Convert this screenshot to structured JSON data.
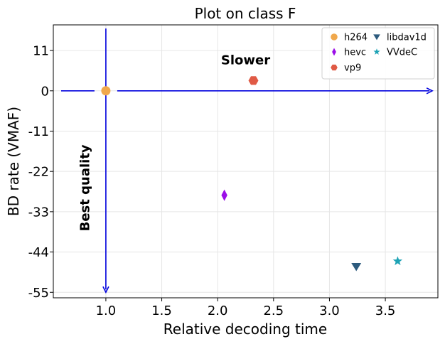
{
  "chart_data": {
    "type": "scatter",
    "title": "Plot on class F",
    "xlabel": "Relative decoding time",
    "ylabel": "BD rate (VMAF)",
    "xlim": [
      0.53,
      3.97
    ],
    "ylim": [
      -56.5,
      18
    ],
    "xticks": [
      1.0,
      1.5,
      2.0,
      2.5,
      3.0,
      3.5
    ],
    "xtick_labels": [
      "1.0",
      "1.5",
      "2.0",
      "2.5",
      "3.0",
      "3.5"
    ],
    "yticks": [
      11,
      0,
      -11,
      -22,
      -33,
      -44,
      -55
    ],
    "ytick_labels": [
      "11",
      "0",
      "-11",
      "-22",
      "-33",
      "-44",
      "-55"
    ],
    "grid": true,
    "legend_position": "top-right",
    "legend_columns": 2,
    "series": [
      {
        "name": "h264",
        "color": "#f0a84c",
        "marker": "circle",
        "points": [
          [
            1.0,
            0.0
          ]
        ]
      },
      {
        "name": "hevc",
        "color": "#9b0fe8",
        "marker": "thin_diamond",
        "points": [
          [
            2.06,
            -28.5
          ]
        ]
      },
      {
        "name": "vp9",
        "color": "#e05a45",
        "marker": "hexagon",
        "points": [
          [
            2.32,
            2.8
          ]
        ]
      },
      {
        "name": "libdav1d",
        "color": "#2d5b7e",
        "marker": "triangle_down",
        "points": [
          [
            3.24,
            -48.0
          ]
        ]
      },
      {
        "name": "VVdeC",
        "color": "#1ea3b5",
        "marker": "star",
        "points": [
          [
            3.61,
            -46.5
          ]
        ]
      }
    ],
    "arrows": [
      {
        "direction": "horizontal",
        "y": 0,
        "x_start": 0.6,
        "x_end": 3.92,
        "color": "#0000dd"
      },
      {
        "direction": "vertical",
        "x": 1.0,
        "y_start": 17,
        "y_end": -55,
        "color": "#0000dd"
      }
    ],
    "annotations": [
      {
        "text": "Slower",
        "x": 2.25,
        "y": 7.2,
        "rotation": 0
      },
      {
        "text": "Best quality",
        "x": 0.85,
        "y": -26.5,
        "rotation": -90
      }
    ]
  }
}
